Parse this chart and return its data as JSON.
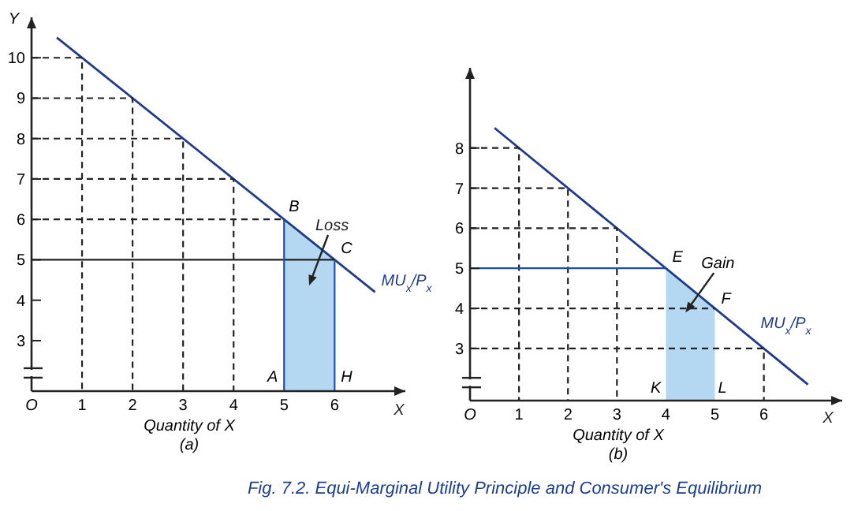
{
  "chart_data": [
    {
      "type": "line",
      "xlabel": "Quantity of X",
      "subtitle": "(a)",
      "ylabel": "Y",
      "xlim": [
        0,
        7.4
      ],
      "ylim": [
        1.75,
        11
      ],
      "xticks": [
        {
          "value": 0,
          "label": "O"
        },
        1,
        2,
        3,
        4,
        5,
        6
      ],
      "yticks": [
        3,
        4,
        5,
        6,
        7,
        8,
        9,
        10
      ],
      "marker": "none",
      "series": [
        {
          "type": "area",
          "color": "#b5d8f2",
          "x": [
            5,
            6
          ],
          "values": [
            6,
            5
          ]
        },
        {
          "name": "MU$_{x}$/P$_{x}$",
          "color": "#1f3a8a",
          "x": [
            0.5,
            6.8
          ],
          "values": [
            10.5,
            4.2
          ]
        },
        {
          "color": "#222222",
          "line_style": "dashed",
          "x": [
            0,
            1,
            1
          ],
          "values": [
            10,
            10,
            1.75
          ]
        },
        {
          "color": "#222222",
          "line_style": "dashed",
          "x": [
            0,
            2,
            2
          ],
          "values": [
            9,
            9,
            1.75
          ]
        },
        {
          "color": "#222222",
          "line_style": "dashed",
          "x": [
            0,
            3,
            3
          ],
          "values": [
            8,
            8,
            1.75
          ]
        },
        {
          "color": "#222222",
          "line_style": "dashed",
          "x": [
            0,
            4,
            4
          ],
          "values": [
            7,
            7,
            1.75
          ]
        },
        {
          "color": "#222222",
          "line_style": "dashed",
          "x": [
            0,
            5
          ],
          "values": [
            6,
            6
          ]
        },
        {
          "color": "#222222",
          "x": [
            0,
            6
          ],
          "values": [
            5,
            5
          ]
        },
        {
          "color": "#1f4fa8",
          "x": [
            5,
            5
          ],
          "values": [
            1.75,
            6
          ]
        },
        {
          "color": "#1f4fa8",
          "x": [
            6,
            6
          ],
          "values": [
            1.75,
            5
          ]
        }
      ],
      "annotations": [
        {
          "text": "B",
          "x": 5,
          "y": 6
        },
        {
          "text": "C",
          "x": 6,
          "y": 5
        },
        {
          "text": "A",
          "x": 5,
          "y": 1.75
        },
        {
          "text": "H",
          "x": 6,
          "y": 1.75
        },
        "Loss",
        "X"
      ]
    },
    {
      "type": "line",
      "xlabel": "Quantity of X",
      "subtitle": "(b)",
      "xlim": [
        0,
        7.6
      ],
      "ylim": [
        1.7,
        10
      ],
      "xticks": [
        {
          "value": 0,
          "label": "O"
        },
        1,
        2,
        3,
        4,
        5,
        6
      ],
      "yticks": [
        3,
        4,
        5,
        6,
        7,
        8
      ],
      "marker": "none",
      "series": [
        {
          "type": "area",
          "color": "#b5d8f2",
          "x": [
            4,
            5
          ],
          "values": [
            5,
            4
          ]
        },
        {
          "name": "MU$_{x}$/P$_{x}$",
          "color": "#1f3a8a",
          "x": [
            0.5,
            6.9
          ],
          "values": [
            8.5,
            2.1
          ]
        },
        {
          "color": "#222222",
          "line_style": "dashed",
          "x": [
            0,
            1,
            1
          ],
          "values": [
            8,
            8,
            1.7
          ]
        },
        {
          "color": "#222222",
          "line_style": "dashed",
          "x": [
            0,
            2,
            2
          ],
          "values": [
            7,
            7,
            1.7
          ]
        },
        {
          "color": "#222222",
          "line_style": "dashed",
          "x": [
            0,
            3,
            3
          ],
          "values": [
            6,
            6,
            1.7
          ]
        },
        {
          "color": "#222222",
          "line_style": "dashed",
          "x": [
            0,
            5
          ],
          "values": [
            4,
            4
          ]
        },
        {
          "color": "#222222",
          "line_style": "dashed",
          "x": [
            0,
            6,
            6
          ],
          "values": [
            3,
            3,
            1.7
          ]
        },
        {
          "color": "#1f4fa8",
          "x": [
            0,
            4
          ],
          "values": [
            5,
            5
          ]
        }
      ],
      "annotations": [
        {
          "text": "E",
          "x": 4,
          "y": 5
        },
        {
          "text": "F",
          "x": 5,
          "y": 4
        },
        {
          "text": "K",
          "x": 4,
          "y": 1.7
        },
        {
          "text": "L",
          "x": 5,
          "y": 1.7
        },
        {
          "text": "Gain",
          "x": 4.4,
          "y": 3.9
        },
        "X",
        "Fig. 7.2.  Equi-Marginal Utility Principle and Consumer's Equilibrium"
      ]
    }
  ]
}
